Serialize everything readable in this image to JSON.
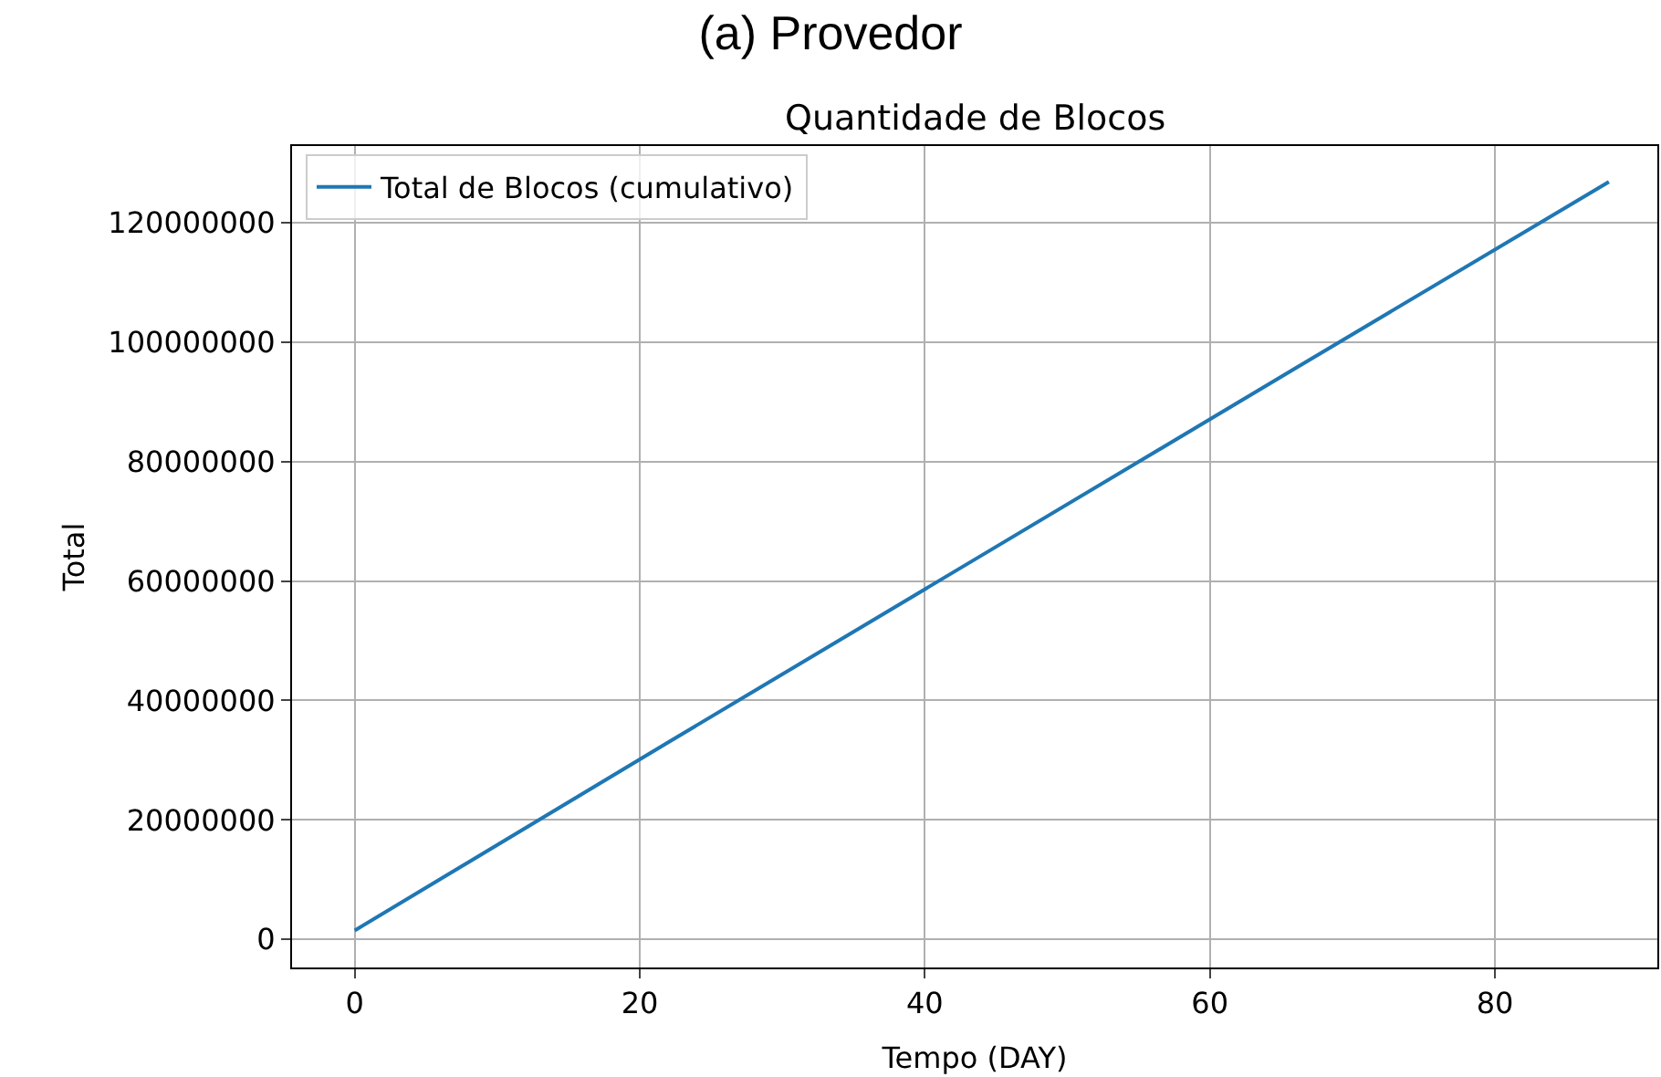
{
  "chart_data": {
    "type": "line",
    "title": "(a) Provedor",
    "subtitle": "Quantidade de Blocos",
    "xlabel": "Tempo (DAY)",
    "ylabel": "Total",
    "x": [
      0,
      22,
      44,
      66,
      88
    ],
    "series": [
      {
        "name": "Total de Blocos (cumulativo)",
        "color": "#1f77b4",
        "values": [
          1500000,
          33000000,
          64300000,
          95600000,
          126800000
        ]
      }
    ],
    "xlim": [
      -4.4,
      91.4
    ],
    "ylim": [
      -4700000,
      132800000
    ],
    "xticks": [
      0,
      20,
      40,
      60,
      80
    ],
    "yticks": [
      0,
      20000000,
      40000000,
      60000000,
      80000000,
      100000000,
      120000000
    ],
    "grid": true,
    "legend": "top left",
    "marker": "none",
    "line_style": "solid"
  }
}
